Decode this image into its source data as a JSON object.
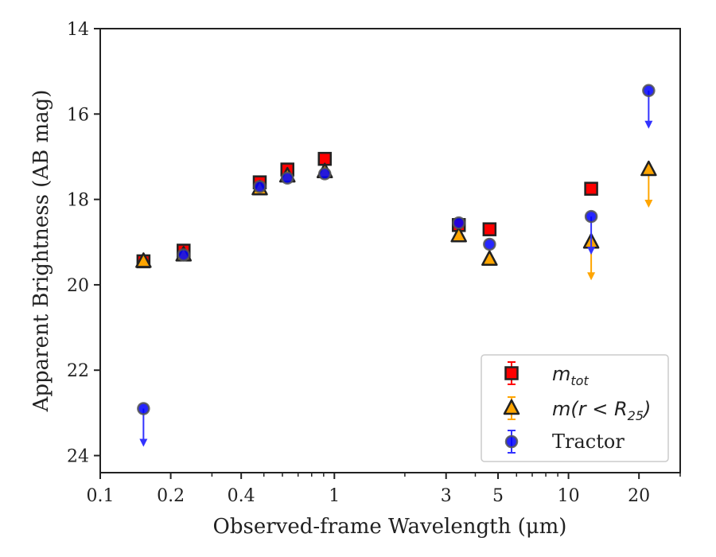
{
  "chart_data": {
    "type": "scatter",
    "xlabel": "Observed-frame Wavelength (μm)",
    "ylabel": "Apparent Brightness (AB mag)",
    "xscale": "log",
    "xlim": [
      0.1,
      30
    ],
    "ylim": [
      24.4,
      14
    ],
    "y_inverted": true,
    "grid": false,
    "legend_position": "lower-right",
    "x_ticks": [
      {
        "value": 0.1,
        "label": "0.1"
      },
      {
        "value": 0.2,
        "label": "0.2"
      },
      {
        "value": 0.4,
        "label": "0.4"
      },
      {
        "value": 1,
        "label": "1"
      },
      {
        "value": 3,
        "label": "3"
      },
      {
        "value": 5,
        "label": "5"
      },
      {
        "value": 10,
        "label": "10"
      },
      {
        "value": 20,
        "label": "20"
      }
    ],
    "y_ticks": [
      {
        "value": 14,
        "label": "14"
      },
      {
        "value": 16,
        "label": "16"
      },
      {
        "value": 18,
        "label": "18"
      },
      {
        "value": 20,
        "label": "20"
      },
      {
        "value": 22,
        "label": "22"
      },
      {
        "value": 24,
        "label": "24"
      }
    ],
    "series": [
      {
        "name": "m_tot",
        "legend_main": "m",
        "legend_sub": "tot",
        "marker": "square",
        "color": "#ff0000",
        "edge_color": "#222222",
        "points": [
          {
            "x": 0.153,
            "y": 19.45
          },
          {
            "x": 0.227,
            "y": 19.2
          },
          {
            "x": 0.48,
            "y": 17.6
          },
          {
            "x": 0.63,
            "y": 17.3
          },
          {
            "x": 0.91,
            "y": 17.05
          },
          {
            "x": 3.4,
            "y": 18.6
          },
          {
            "x": 4.6,
            "y": 18.7
          },
          {
            "x": 12.5,
            "y": 17.75
          }
        ]
      },
      {
        "name": "m(r < R25)",
        "legend_main": "m(r < R",
        "legend_sub": "25",
        "legend_tail": ")",
        "marker": "triangle",
        "color": "#ffa500",
        "edge_color": "#222222",
        "points": [
          {
            "x": 0.153,
            "y": 19.45
          },
          {
            "x": 0.227,
            "y": 19.3
          },
          {
            "x": 0.48,
            "y": 17.75
          },
          {
            "x": 0.63,
            "y": 17.45
          },
          {
            "x": 0.91,
            "y": 17.35
          },
          {
            "x": 3.4,
            "y": 18.85
          },
          {
            "x": 4.6,
            "y": 19.4
          },
          {
            "x": 12.5,
            "y": 19.0,
            "upper_limit": true
          },
          {
            "x": 22,
            "y": 17.3,
            "upper_limit": true
          }
        ]
      },
      {
        "name": "Tractor",
        "legend_main": "Tractor",
        "marker": "circle",
        "color": "#0000ff",
        "edge_color": "#555555",
        "points": [
          {
            "x": 0.153,
            "y": 22.9,
            "upper_limit": true
          },
          {
            "x": 0.227,
            "y": 19.3
          },
          {
            "x": 0.48,
            "y": 17.7
          },
          {
            "x": 0.63,
            "y": 17.5
          },
          {
            "x": 0.91,
            "y": 17.4
          },
          {
            "x": 3.4,
            "y": 18.55
          },
          {
            "x": 4.6,
            "y": 19.05
          },
          {
            "x": 12.5,
            "y": 18.4,
            "upper_limit": true
          },
          {
            "x": 22,
            "y": 15.45,
            "upper_limit": true
          }
        ]
      }
    ]
  }
}
